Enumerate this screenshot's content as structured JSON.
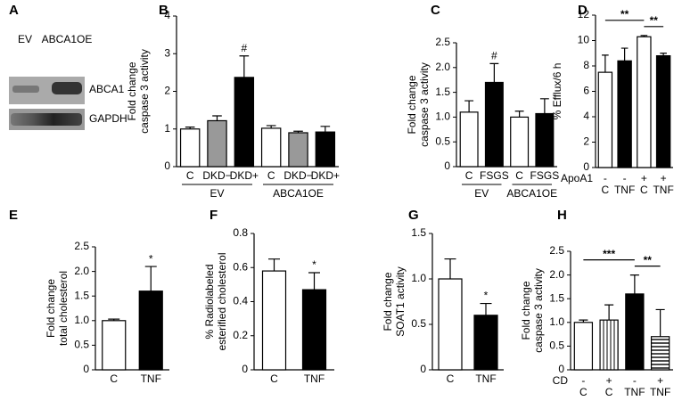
{
  "blot": {
    "panel": "A",
    "lanes": [
      "EV",
      "ABCA1OE"
    ],
    "bands": [
      "ABCA1",
      "GAPDH"
    ]
  },
  "chart_data": [
    {
      "type": "bar",
      "panel": "B",
      "ylabel": [
        "Fold change",
        "caspase 3 activity"
      ],
      "categories": [
        "C",
        "DKD−",
        "DKD+",
        "C",
        "DKD−",
        "DKD+"
      ],
      "values": [
        1.0,
        1.22,
        2.37,
        1.02,
        0.9,
        0.92
      ],
      "errors": [
        0.05,
        0.13,
        0.57,
        0.07,
        0.04,
        0.15
      ],
      "colors": [
        "#ffffff",
        "#999999",
        "#000000",
        "#ffffff",
        "#999999",
        "#000000"
      ],
      "marks": [
        null,
        null,
        "#",
        null,
        null,
        null
      ],
      "groups": [
        "EV",
        "ABCA1OE"
      ],
      "ylim": [
        0,
        4
      ],
      "yticks": [
        0,
        1,
        2,
        3,
        4
      ]
    },
    {
      "type": "bar",
      "panel": "C",
      "ylabel": [
        "Fold change",
        "caspase 3 activity"
      ],
      "categories": [
        "C",
        "FSGS",
        "C",
        "FSGS"
      ],
      "values": [
        1.1,
        1.7,
        1.0,
        1.07
      ],
      "errors": [
        0.23,
        0.38,
        0.12,
        0.3
      ],
      "colors": [
        "#ffffff",
        "#000000",
        "#ffffff",
        "#000000"
      ],
      "marks": [
        null,
        "#",
        null,
        null
      ],
      "groups": [
        "EV",
        "ABCA1OE"
      ],
      "ylim": [
        0,
        2.5
      ],
      "yticks": [
        0,
        0.5,
        {
          "value": 1,
          "label": "1.0"
        },
        1.5,
        {
          "value": 2,
          "label": "2.0"
        },
        2.5
      ]
    },
    {
      "type": "bar",
      "panel": "D",
      "ylabel": [
        "% Efflux/6 h"
      ],
      "categories": [
        "C",
        "TNF",
        "C",
        "TNF"
      ],
      "row": {
        "label": "ApoA1",
        "values": [
          "-",
          "-",
          "+",
          "+"
        ]
      },
      "values": [
        7.5,
        8.4,
        10.3,
        8.8
      ],
      "errors": [
        1.35,
        1.0,
        0.1,
        0.2
      ],
      "colors": [
        "#ffffff",
        "#000000",
        "#ffffff",
        "#000000"
      ],
      "brackets": [
        {
          "from": 0,
          "to": 2,
          "label": "**"
        },
        {
          "from": 2,
          "to": 3,
          "label": "**"
        }
      ],
      "ylim": [
        0,
        12
      ],
      "yticks": [
        0,
        2,
        4,
        6,
        8,
        10,
        12
      ]
    },
    {
      "type": "bar",
      "panel": "E",
      "ylabel": [
        "Fold change",
        "total cholesterol"
      ],
      "categories": [
        "C",
        "TNF"
      ],
      "values": [
        1.0,
        1.6
      ],
      "errors": [
        0.03,
        0.5
      ],
      "colors": [
        "#ffffff",
        "#000000"
      ],
      "marks": [
        null,
        "*"
      ],
      "ylim": [
        0,
        2.5
      ],
      "yticks": [
        0,
        0.5,
        {
          "value": 1,
          "label": "1.0"
        },
        1.5,
        {
          "value": 2,
          "label": "2.0"
        },
        2.5
      ]
    },
    {
      "type": "bar",
      "panel": "F",
      "ylabel": [
        "% Radiolabeled",
        "esterified cholesterol"
      ],
      "categories": [
        "C",
        "TNF"
      ],
      "values": [
        0.58,
        0.47
      ],
      "errors": [
        0.07,
        0.1
      ],
      "colors": [
        "#ffffff",
        "#000000"
      ],
      "marks": [
        null,
        "*"
      ],
      "ylim": [
        0,
        0.8
      ],
      "yticks": [
        0,
        0.2,
        0.4,
        0.6,
        0.8
      ]
    },
    {
      "type": "bar",
      "panel": "G",
      "ylabel": [
        "Fold change",
        "SOAT1 activity"
      ],
      "categories": [
        "C",
        "TNF"
      ],
      "values": [
        1.0,
        0.6
      ],
      "errors": [
        0.22,
        0.13
      ],
      "colors": [
        "#ffffff",
        "#000000"
      ],
      "marks": [
        null,
        "*"
      ],
      "ylim": [
        0,
        1.5
      ],
      "yticks": [
        0,
        0.5,
        {
          "value": 1,
          "label": "1.0"
        },
        1.5
      ]
    },
    {
      "type": "bar",
      "panel": "H",
      "ylabel": [
        "Fold change",
        "caspase 3 activity"
      ],
      "categories": [
        "C",
        "C",
        "TNF",
        "TNF"
      ],
      "row": {
        "label": "CD",
        "values": [
          "-",
          "+",
          "-",
          "+"
        ]
      },
      "values": [
        1.0,
        1.05,
        1.6,
        0.7
      ],
      "errors": [
        0.05,
        0.32,
        0.4,
        0.57
      ],
      "colors": [
        "#ffffff",
        "#ffffff",
        "#000000",
        "#ffffff"
      ],
      "patterns": [
        null,
        "vertical",
        null,
        "horizontal"
      ],
      "brackets": [
        {
          "from": 0,
          "to": 2,
          "label": "***"
        },
        {
          "from": 2,
          "to": 3,
          "label": "**"
        }
      ],
      "ylim": [
        0,
        2.5
      ],
      "yticks": [
        0,
        0.5,
        {
          "value": 1,
          "label": "1.0"
        },
        1.5,
        {
          "value": 2,
          "label": "2.0"
        },
        2.5
      ]
    }
  ]
}
